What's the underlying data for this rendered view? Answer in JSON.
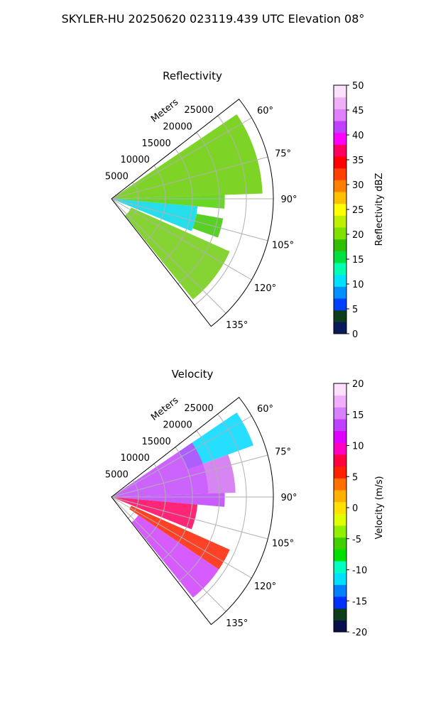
{
  "figure": {
    "suptitle": "SKYLER-HU  20250620  023119.439 UTC Elevation 08°"
  },
  "chart_data": [
    {
      "type": "heatmap",
      "projection": "polar-sector",
      "title": "Reflectivity",
      "radial_label": "Meters",
      "radial_ticks": [
        5000,
        10000,
        15000,
        20000,
        25000
      ],
      "rlim": [
        0,
        30000
      ],
      "angle_ticks": [
        "60°",
        "75°",
        "90°",
        "105°",
        "120°",
        "135°"
      ],
      "theta_range_deg": [
        52,
        142
      ],
      "grid": true,
      "colorbar": {
        "label": "Reflectivity dBZ",
        "ticks": [
          0,
          5,
          10,
          15,
          20,
          25,
          30,
          35,
          40,
          45,
          50
        ],
        "range": [
          0,
          50
        ],
        "colors": [
          "#0a1a5a",
          "#0d3d1a",
          "#0040ff",
          "#0090ff",
          "#00e0ff",
          "#00ffb0",
          "#00e040",
          "#30c000",
          "#80e000",
          "#c0f000",
          "#ffff00",
          "#ffc000",
          "#ff8000",
          "#ff4000",
          "#ff0000",
          "#ff0060",
          "#ff00ff",
          "#c040ff",
          "#e080ff",
          "#f0b0f8",
          "#fce0fc"
        ]
      },
      "echo_regions": [
        {
          "theta": [
            56,
            88
          ],
          "r": [
            0,
            28000
          ],
          "level": "20–28 dBZ",
          "color": "#66cc00"
        },
        {
          "theta": [
            88,
            95
          ],
          "r": [
            0,
            21000
          ],
          "level": "15–25 dBZ",
          "color": "#4fd000"
        },
        {
          "theta": [
            95,
            112
          ],
          "r": [
            0,
            16000
          ],
          "level": "10–15 dBZ",
          "color": "#00d8e8"
        },
        {
          "theta": [
            100,
            110
          ],
          "r": [
            16000,
            21000
          ],
          "level": "18–22 dBZ",
          "color": "#3cc800"
        },
        {
          "theta": [
            114,
            141
          ],
          "r": [
            4000,
            24000
          ],
          "level": "18–28 dBZ",
          "color": "#70cc10"
        }
      ]
    },
    {
      "type": "heatmap",
      "projection": "polar-sector",
      "title": "Velocity",
      "radial_label": "Meters",
      "radial_ticks": [
        5000,
        10000,
        15000,
        20000,
        25000
      ],
      "rlim": [
        0,
        30000
      ],
      "angle_ticks": [
        "60°",
        "75°",
        "90°",
        "105°",
        "120°",
        "135°"
      ],
      "theta_range_deg": [
        52,
        142
      ],
      "grid": true,
      "colorbar": {
        "label": "Velocity (m/s)",
        "ticks": [
          -20,
          -15,
          -10,
          -5,
          0,
          5,
          10,
          15,
          20
        ],
        "range": [
          -20,
          20
        ],
        "colors": [
          "#08104a",
          "#0d3d1a",
          "#0030ff",
          "#0080ff",
          "#00e0ff",
          "#00ffc0",
          "#00e000",
          "#40d000",
          "#90f000",
          "#e0ff00",
          "#ffe000",
          "#ffb000",
          "#ff7000",
          "#ff2000",
          "#ff0040",
          "#ff00c0",
          "#e000ff",
          "#c040ff",
          "#d880ff",
          "#f0b0ff",
          "#fce0fc"
        ]
      },
      "echo_regions": [
        {
          "theta": [
            56,
            70
          ],
          "r": [
            15000,
            28000
          ],
          "level": "-10 to -15 m/s",
          "color": "#00d8ff"
        },
        {
          "theta": [
            56,
            88
          ],
          "r": [
            0,
            18000
          ],
          "level": "10–14 m/s",
          "color": "#c448ff"
        },
        {
          "theta": [
            70,
            88
          ],
          "r": [
            18000,
            23000
          ],
          "level": "12–16 m/s",
          "color": "#d070f0"
        },
        {
          "theta": [
            88,
            95
          ],
          "r": [
            0,
            21000
          ],
          "level": "12–15 m/s",
          "color": "#c040ff"
        },
        {
          "theta": [
            95,
            112
          ],
          "r": [
            0,
            16000
          ],
          "level": "5–10 m/s",
          "color": "#ff0060"
        },
        {
          "theta": [
            114,
            124
          ],
          "r": [
            4000,
            24000
          ],
          "level": "8–10 m/s",
          "color": "#ff2000"
        },
        {
          "theta": [
            124,
            141
          ],
          "r": [
            6000,
            24000
          ],
          "level": "12–15 m/s",
          "color": "#d040ff"
        }
      ]
    }
  ]
}
